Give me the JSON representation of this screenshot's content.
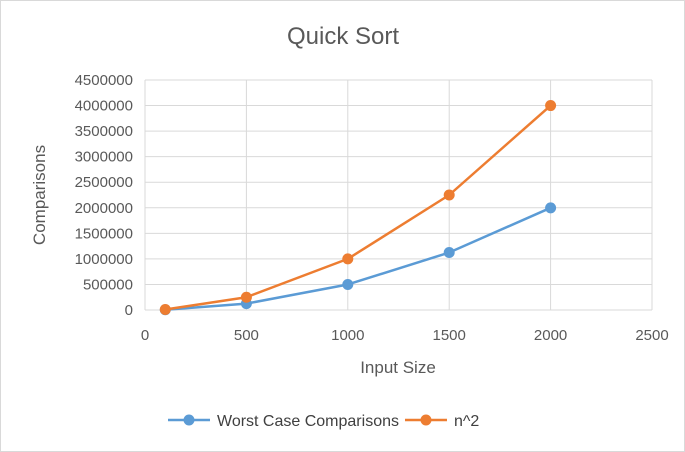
{
  "chart_data": {
    "type": "line",
    "title": "Quick Sort",
    "xlabel": "Input Size",
    "ylabel": "Comparisons",
    "xlim": [
      0,
      2500
    ],
    "ylim": [
      0,
      4500000
    ],
    "x_ticks": [
      "0",
      "500",
      "1000",
      "1500",
      "2000",
      "2500"
    ],
    "y_ticks": [
      "0",
      "500000",
      "1000000",
      "1500000",
      "2000000",
      "2500000",
      "3000000",
      "3500000",
      "4000000",
      "4500000"
    ],
    "grid": true,
    "legend_position": "bottom",
    "series": [
      {
        "name": "Worst Case Comparisons",
        "color": "#5b9bd5",
        "points": [
          [
            100,
            4950
          ],
          [
            500,
            124750
          ],
          [
            1000,
            499500
          ],
          [
            1500,
            1124250
          ],
          [
            2000,
            1999000
          ]
        ]
      },
      {
        "name": "n^2",
        "color": "#ed7d31",
        "points": [
          [
            100,
            10000
          ],
          [
            500,
            250000
          ],
          [
            1000,
            1000000
          ],
          [
            1500,
            2250000
          ],
          [
            2000,
            4000000
          ]
        ]
      }
    ]
  }
}
